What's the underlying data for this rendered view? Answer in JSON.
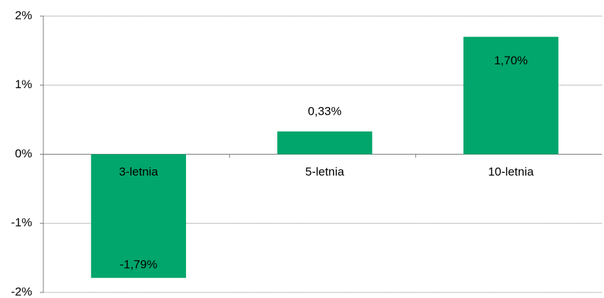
{
  "chart_data": {
    "type": "bar",
    "categories": [
      "3-letnia",
      "5-letnia",
      "10-letnia"
    ],
    "values": [
      -1.79,
      0.33,
      1.7
    ],
    "value_labels": [
      "-1,79%",
      "0,33%",
      "1,70%"
    ],
    "color": "#00a66b",
    "ylim": [
      -2,
      2
    ],
    "yticks": [
      {
        "value": -2,
        "label": "-2%"
      },
      {
        "value": -1,
        "label": "-1%"
      },
      {
        "value": 0,
        "label": "0%"
      },
      {
        "value": 1,
        "label": "1%"
      },
      {
        "value": 2,
        "label": "2%"
      }
    ],
    "grid": true
  }
}
